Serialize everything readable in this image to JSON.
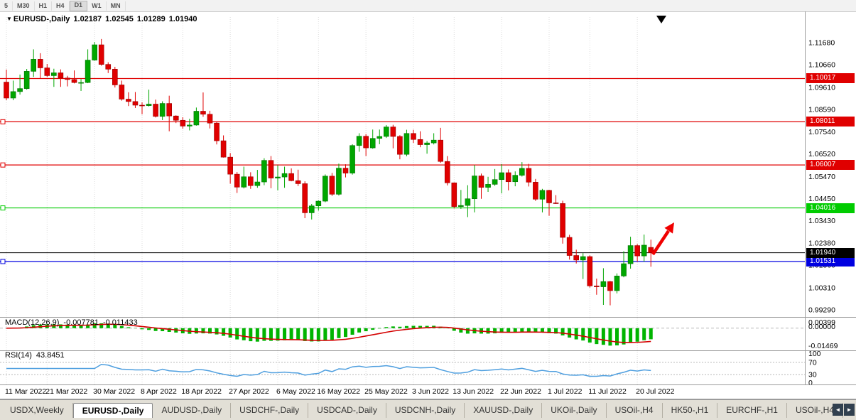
{
  "toolbar": {
    "timeframes": [
      "5",
      "M30",
      "H1",
      "H4",
      "D1",
      "W1",
      "MN"
    ],
    "active": "D1"
  },
  "chart": {
    "symbol_period": "EURUSD-,Daily",
    "open": "1.02187",
    "high": "1.02545",
    "low": "1.01289",
    "close": "1.01940",
    "price_axis_labels": [
      "1.11680",
      "1.10660",
      "1.09610",
      "1.08590",
      "1.07540",
      "1.06520",
      "1.05470",
      "1.04450",
      "1.03430",
      "1.02380",
      "1.01360",
      "1.00310",
      "0.99290"
    ],
    "hlines": [
      {
        "price": 1.10017,
        "label": "1.10017",
        "color": "#e00000",
        "handle": false
      },
      {
        "price": 1.08011,
        "label": "1.08011",
        "color": "#e00000",
        "handle": true
      },
      {
        "price": 1.06007,
        "label": "1.06007",
        "color": "#e00000",
        "handle": true
      },
      {
        "price": 1.04016,
        "label": "1.04016",
        "color": "#00cc00",
        "handle": true
      },
      {
        "price": 1.01531,
        "label": "1.01531",
        "color": "#0000e0",
        "handle": true
      }
    ],
    "bid_line": {
      "price": 1.0194,
      "label": "1.01940",
      "color": "#000000"
    },
    "x_ticks": {
      "labels": [
        "11 Mar 2022",
        "21 Mar 2022",
        "30 Mar 2022",
        "8 Apr 2022",
        "18 Apr 2022",
        "27 Apr 2022",
        "6 May 2022",
        "16 May 2022",
        "25 May 2022",
        "3 Jun 2022",
        "13 Jun 2022",
        "22 Jun 2022",
        "1 Jul 2022",
        "11 Jul 2022",
        "20 Jul 2022"
      ],
      "candle_indices": [
        0,
        6,
        13,
        20,
        26,
        33,
        40,
        46,
        53,
        60,
        66,
        73,
        80,
        86,
        93
      ]
    }
  },
  "chart_data": {
    "type": "candlestick",
    "symbol": "EURUSD",
    "timeframe": "Daily",
    "bull_color": "#00a600",
    "bear_color": "#e00000",
    "dates": [
      "2022-03-11",
      "2022-03-14",
      "2022-03-15",
      "2022-03-16",
      "2022-03-17",
      "2022-03-18",
      "2022-03-21",
      "2022-03-22",
      "2022-03-23",
      "2022-03-24",
      "2022-03-25",
      "2022-03-28",
      "2022-03-29",
      "2022-03-30",
      "2022-03-31",
      "2022-04-01",
      "2022-04-04",
      "2022-04-05",
      "2022-04-06",
      "2022-04-07",
      "2022-04-08",
      "2022-04-11",
      "2022-04-12",
      "2022-04-13",
      "2022-04-14",
      "2022-04-15",
      "2022-04-18",
      "2022-04-19",
      "2022-04-20",
      "2022-04-21",
      "2022-04-22",
      "2022-04-25",
      "2022-04-26",
      "2022-04-27",
      "2022-04-28",
      "2022-04-29",
      "2022-05-02",
      "2022-05-03",
      "2022-05-04",
      "2022-05-05",
      "2022-05-06",
      "2022-05-09",
      "2022-05-10",
      "2022-05-11",
      "2022-05-12",
      "2022-05-13",
      "2022-05-16",
      "2022-05-17",
      "2022-05-18",
      "2022-05-19",
      "2022-05-20",
      "2022-05-23",
      "2022-05-24",
      "2022-05-25",
      "2022-05-26",
      "2022-05-27",
      "2022-05-30",
      "2022-05-31",
      "2022-06-01",
      "2022-06-02",
      "2022-06-03",
      "2022-06-06",
      "2022-06-07",
      "2022-06-08",
      "2022-06-09",
      "2022-06-10",
      "2022-06-13",
      "2022-06-14",
      "2022-06-15",
      "2022-06-16",
      "2022-06-17",
      "2022-06-20",
      "2022-06-21",
      "2022-06-22",
      "2022-06-23",
      "2022-06-24",
      "2022-06-27",
      "2022-06-28",
      "2022-06-29",
      "2022-06-30",
      "2022-07-01",
      "2022-07-04",
      "2022-07-05",
      "2022-07-06",
      "2022-07-07",
      "2022-07-08",
      "2022-07-11",
      "2022-07-12",
      "2022-07-13",
      "2022-07-14",
      "2022-07-15",
      "2022-07-18",
      "2022-07-19",
      "2022-07-20",
      "2022-07-21",
      "2022-07-22"
    ],
    "ohlc": [
      [
        1.0985,
        1.1043,
        1.0901,
        1.0911
      ],
      [
        1.0911,
        1.0992,
        1.0901,
        1.0941
      ],
      [
        1.0941,
        1.102,
        1.0927,
        1.0955
      ],
      [
        1.0955,
        1.1046,
        1.095,
        1.1035
      ],
      [
        1.1035,
        1.1137,
        1.1009,
        1.1091
      ],
      [
        1.1091,
        1.1119,
        1.1003,
        1.1051
      ],
      [
        1.1051,
        1.1069,
        1.1009,
        1.1015
      ],
      [
        1.1015,
        1.1047,
        1.0963,
        1.1028
      ],
      [
        1.1028,
        1.1044,
        1.0963,
        1.1004
      ],
      [
        1.1004,
        1.1014,
        1.0965,
        1.0997
      ],
      [
        1.0997,
        1.1039,
        1.0979,
        1.0983
      ],
      [
        1.0983,
        1.0999,
        1.0944,
        1.0983
      ],
      [
        1.0983,
        1.1137,
        1.098,
        1.1087
      ],
      [
        1.1087,
        1.1171,
        1.1084,
        1.1158
      ],
      [
        1.1158,
        1.1185,
        1.1061,
        1.1067
      ],
      [
        1.1067,
        1.1077,
        1.1027,
        1.1045
      ],
      [
        1.1045,
        1.1056,
        1.096,
        1.0972
      ],
      [
        1.0972,
        1.0992,
        1.0899,
        1.0906
      ],
      [
        1.0906,
        1.0938,
        1.0874,
        1.0895
      ],
      [
        1.0895,
        1.0939,
        1.0865,
        1.0878
      ],
      [
        1.0878,
        1.0891,
        1.0836,
        1.0876
      ],
      [
        1.0876,
        1.095,
        1.0872,
        1.0883
      ],
      [
        1.0883,
        1.0904,
        1.0821,
        1.0826
      ],
      [
        1.0826,
        1.0896,
        1.0809,
        1.0886
      ],
      [
        1.0886,
        1.0922,
        1.0757,
        1.0828
      ],
      [
        1.0828,
        1.0831,
        1.0795,
        1.0808
      ],
      [
        1.0808,
        1.0822,
        1.0769,
        1.0781
      ],
      [
        1.0781,
        1.0815,
        1.0761,
        1.0786
      ],
      [
        1.0786,
        1.0867,
        1.0783,
        1.085
      ],
      [
        1.085,
        1.0937,
        1.0824,
        1.0836
      ],
      [
        1.0836,
        1.0852,
        1.077,
        1.0795
      ],
      [
        1.0795,
        1.0802,
        1.0696,
        1.0713
      ],
      [
        1.0713,
        1.0738,
        1.0635,
        1.0637
      ],
      [
        1.0637,
        1.0656,
        1.0514,
        1.0558
      ],
      [
        1.0558,
        1.0568,
        1.0471,
        1.0498
      ],
      [
        1.0498,
        1.0593,
        1.0492,
        1.0546
      ],
      [
        1.0546,
        1.0567,
        1.049,
        1.0505
      ],
      [
        1.0505,
        1.0578,
        1.0495,
        1.0522
      ],
      [
        1.0522,
        1.0632,
        1.0507,
        1.0622
      ],
      [
        1.0622,
        1.0642,
        1.0493,
        1.054
      ],
      [
        1.054,
        1.0599,
        1.0483,
        1.0545
      ],
      [
        1.0545,
        1.0593,
        1.0495,
        1.0561
      ],
      [
        1.0561,
        1.0585,
        1.0525,
        1.0528
      ],
      [
        1.0528,
        1.0579,
        1.0503,
        1.0514
      ],
      [
        1.0514,
        1.0525,
        1.0354,
        1.0379
      ],
      [
        1.0379,
        1.042,
        1.0348,
        1.0411
      ],
      [
        1.0411,
        1.0437,
        1.0389,
        1.0433
      ],
      [
        1.0433,
        1.0557,
        1.0428,
        1.0549
      ],
      [
        1.0549,
        1.0564,
        1.0457,
        1.0465
      ],
      [
        1.0465,
        1.0607,
        1.0459,
        1.0586
      ],
      [
        1.0586,
        1.0604,
        1.0543,
        1.0563
      ],
      [
        1.0563,
        1.0697,
        1.0556,
        1.0691
      ],
      [
        1.0691,
        1.0748,
        1.0662,
        1.0734
      ],
      [
        1.0734,
        1.0744,
        1.0642,
        1.068
      ],
      [
        1.068,
        1.0765,
        1.0676,
        1.0724
      ],
      [
        1.0724,
        1.0765,
        1.0697,
        1.0733
      ],
      [
        1.0733,
        1.0786,
        1.0726,
        1.0777
      ],
      [
        1.0777,
        1.0787,
        1.0678,
        1.0733
      ],
      [
        1.0733,
        1.0739,
        1.0627,
        1.065
      ],
      [
        1.065,
        1.0764,
        1.0641,
        1.0747
      ],
      [
        1.0747,
        1.0764,
        1.0703,
        1.0719
      ],
      [
        1.0719,
        1.0757,
        1.0683,
        1.0695
      ],
      [
        1.0695,
        1.0712,
        1.0653,
        1.0703
      ],
      [
        1.0703,
        1.0748,
        1.0696,
        1.0716
      ],
      [
        1.0716,
        1.0773,
        1.0611,
        1.0617
      ],
      [
        1.0617,
        1.0642,
        1.0506,
        1.0518
      ],
      [
        1.0518,
        1.052,
        1.0399,
        1.0408
      ],
      [
        1.0408,
        1.0485,
        1.0397,
        1.0413
      ],
      [
        1.0413,
        1.0507,
        1.0359,
        1.0444
      ],
      [
        1.0444,
        1.0601,
        1.0381,
        1.055
      ],
      [
        1.055,
        1.0561,
        1.0444,
        1.0497
      ],
      [
        1.0497,
        1.0546,
        1.0476,
        1.0511
      ],
      [
        1.0511,
        1.0582,
        1.0504,
        1.0533
      ],
      [
        1.0533,
        1.0605,
        1.0469,
        1.0565
      ],
      [
        1.0565,
        1.058,
        1.0483,
        1.0523
      ],
      [
        1.0523,
        1.0571,
        1.0502,
        1.0553
      ],
      [
        1.0553,
        1.0614,
        1.0547,
        1.0585
      ],
      [
        1.0585,
        1.0606,
        1.0501,
        1.0521
      ],
      [
        1.0521,
        1.0536,
        1.0434,
        1.0442
      ],
      [
        1.0442,
        1.049,
        1.0381,
        1.0483
      ],
      [
        1.0483,
        1.0486,
        1.0365,
        1.0425
      ],
      [
        1.0425,
        1.0461,
        1.042,
        1.0422
      ],
      [
        1.0422,
        1.0435,
        1.0236,
        1.0265
      ],
      [
        1.0265,
        1.0277,
        1.0162,
        1.0181
      ],
      [
        1.0181,
        1.0208,
        1.0144,
        1.016
      ],
      [
        1.016,
        1.0192,
        1.0072,
        1.0176
      ],
      [
        1.0176,
        1.0182,
        1.0032,
        1.004
      ],
      [
        1.004,
        1.0074,
        0.9999,
        1.0036
      ],
      [
        1.0036,
        1.0122,
        0.9952,
        1.006
      ],
      [
        1.006,
        1.0063,
        0.995,
        1.0018
      ],
      [
        1.0018,
        1.0098,
        1.0005,
        1.0086
      ],
      [
        1.0086,
        1.0201,
        1.008,
        1.0143
      ],
      [
        1.0143,
        1.0268,
        1.012,
        1.0227
      ],
      [
        1.0227,
        1.0234,
        1.0153,
        1.0179
      ],
      [
        1.0179,
        1.0278,
        1.0152,
        1.0229
      ],
      [
        1.02187,
        1.02545,
        1.01289,
        1.0194
      ]
    ]
  },
  "panels": {
    "macd": {
      "label": "MACD(12,26,9)",
      "value_main": "-0.007781",
      "value_signal": "-0.011433",
      "axis_labels": [
        "0.00399",
        "0.00000",
        "-0.01469"
      ],
      "histogram_color": "#00b400",
      "signal_color": "#d40000",
      "params": {
        "fast": 12,
        "slow": 26,
        "signal": 9
      }
    },
    "rsi": {
      "label": "RSI(14)",
      "value": "43.8451",
      "axis_labels": [
        "100",
        "70",
        "30",
        "0"
      ],
      "levels": [
        70,
        30
      ],
      "line_color": "#4f9fdf",
      "period": 14
    }
  },
  "annotation_arrow": {
    "color": "#f00000",
    "direction": "up-right"
  },
  "tabs": {
    "items": [
      {
        "label": "USDX,Weekly",
        "active": false
      },
      {
        "label": "EURUSD-,Daily",
        "active": true
      },
      {
        "label": "AUDUSD-,Daily",
        "active": false
      },
      {
        "label": "USDCHF-,Daily",
        "active": false
      },
      {
        "label": "USDCAD-,Daily",
        "active": false
      },
      {
        "label": "USDCNH-,Daily",
        "active": false
      },
      {
        "label": "XAUUSD-,Daily",
        "active": false
      },
      {
        "label": "UKOil-,Daily",
        "active": false
      },
      {
        "label": "USOil-,H4",
        "active": false
      },
      {
        "label": "HK50-,H1",
        "active": false
      },
      {
        "label": "EURCHF-,H1",
        "active": false
      },
      {
        "label": "USOil-,H4",
        "active": false
      }
    ],
    "nav_left": "◄",
    "nav_right": "►"
  }
}
